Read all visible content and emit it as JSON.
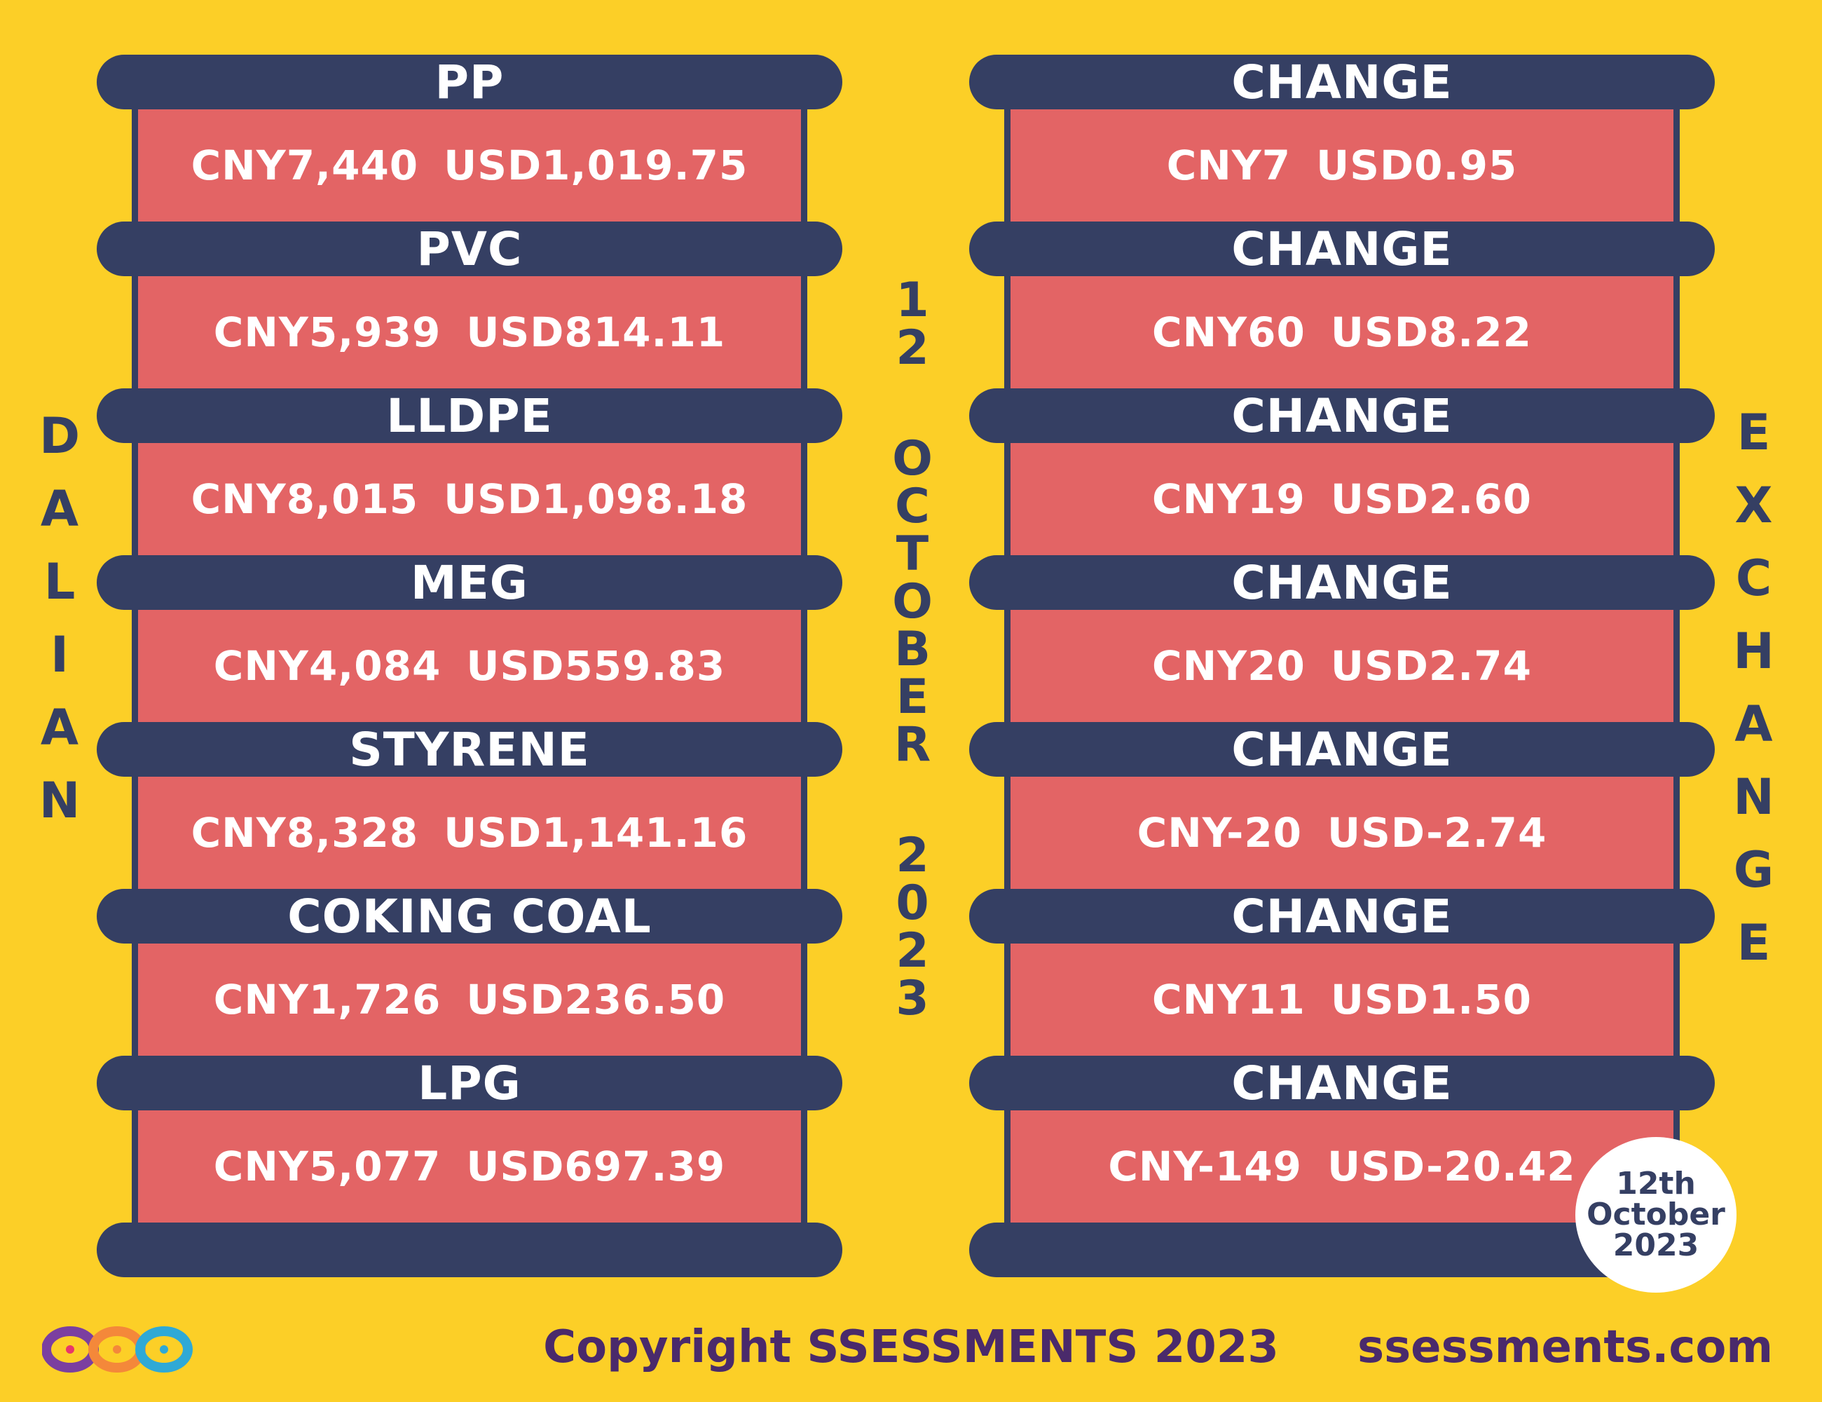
{
  "left_label": [
    "D",
    "A",
    "L",
    "I",
    "A",
    "N"
  ],
  "right_label": [
    "E",
    "X",
    "C",
    "H",
    "A",
    "N",
    "G",
    "E"
  ],
  "date_vertical": {
    "day": [
      "1",
      "2"
    ],
    "month": [
      "O",
      "C",
      "T",
      "O",
      "B",
      "E",
      "R"
    ],
    "year": [
      "2",
      "0",
      "2",
      "3"
    ]
  },
  "products": [
    {
      "name": "PP",
      "cny": "CNY7,440",
      "usd": "USD1,019.75",
      "change_label": "CHANGE",
      "change_cny": "CNY7",
      "change_usd": "USD0.95"
    },
    {
      "name": "PVC",
      "cny": "CNY5,939",
      "usd": "USD814.11",
      "change_label": "CHANGE",
      "change_cny": "CNY60",
      "change_usd": "USD8.22"
    },
    {
      "name": "LLDPE",
      "cny": "CNY8,015",
      "usd": "USD1,098.18",
      "change_label": "CHANGE",
      "change_cny": "CNY19",
      "change_usd": "USD2.60"
    },
    {
      "name": "MEG",
      "cny": "CNY4,084",
      "usd": "USD559.83",
      "change_label": "CHANGE",
      "change_cny": "CNY20",
      "change_usd": "USD2.74"
    },
    {
      "name": "STYRENE",
      "cny": "CNY8,328",
      "usd": "USD1,141.16",
      "change_label": "CHANGE",
      "change_cny": "CNY-20",
      "change_usd": "USD-2.74"
    },
    {
      "name": "COKING COAL",
      "cny": "CNY1,726",
      "usd": "USD236.50",
      "change_label": "CHANGE",
      "change_cny": "CNY11",
      "change_usd": "USD1.50"
    },
    {
      "name": "LPG",
      "cny": "CNY5,077",
      "usd": "USD697.39",
      "change_label": "CHANGE",
      "change_cny": "CNY-149",
      "change_usd": "USD-20.42"
    }
  ],
  "date_badge": [
    "12th",
    "October",
    "2023"
  ],
  "footer": {
    "copyright": "Copyright SSESSMENTS 2023",
    "site": "ssessments.com"
  },
  "colors": {
    "background": "#fccf27",
    "bar": "#353f63",
    "cell": "#e36465",
    "footer_text": "#4a2a6b"
  },
  "icons": {
    "logo": "infinity-loops-logo"
  }
}
